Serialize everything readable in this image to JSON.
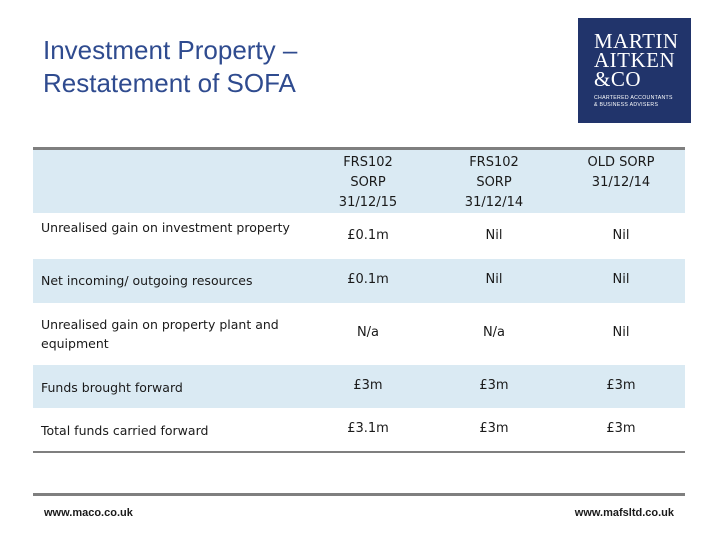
{
  "title": {
    "line1": "Investment Property –",
    "line2": "Restatement of SOFA"
  },
  "logo": {
    "line1": "MARTIN",
    "line2": "AITKEN",
    "line3": "&CO",
    "tagline1": "CHARTERED ACCOUNTANTS",
    "tagline2": "& BUSINESS ADVISERS"
  },
  "table": {
    "headers": [
      {
        "line1": "FRS102",
        "line2": "SORP",
        "line3": "31/12/15"
      },
      {
        "line1": "FRS102",
        "line2": "SORP",
        "line3": "31/12/14"
      },
      {
        "line1": "OLD SORP",
        "line2": "31/12/14",
        "line3": ""
      }
    ],
    "rows": [
      {
        "label1": "Unrealised gain on investment property",
        "label2": "",
        "values": [
          "£0.1m",
          "Nil",
          "Nil"
        ]
      },
      {
        "label1": "Net incoming/ outgoing resources",
        "label2": "",
        "values": [
          "£0.1m",
          "Nil",
          "Nil"
        ]
      },
      {
        "label1": "Unrealised gain on property plant and",
        "label2": "equipment",
        "values": [
          "N/a",
          "N/a",
          "Nil"
        ]
      },
      {
        "label1": "Funds brought forward",
        "label2": "",
        "values": [
          "£3m",
          "£3m",
          "£3m"
        ]
      },
      {
        "label1": "Total funds carried forward",
        "label2": "",
        "values": [
          "£3.1m",
          "£3m",
          "£3m"
        ]
      }
    ]
  },
  "footer": {
    "left": "www.maco.co.uk",
    "right": "www.mafsltd.co.uk"
  },
  "colors": {
    "title": "#2f4b8f",
    "logo_bg": "#21346b",
    "row_alt": "#daeaf3"
  }
}
